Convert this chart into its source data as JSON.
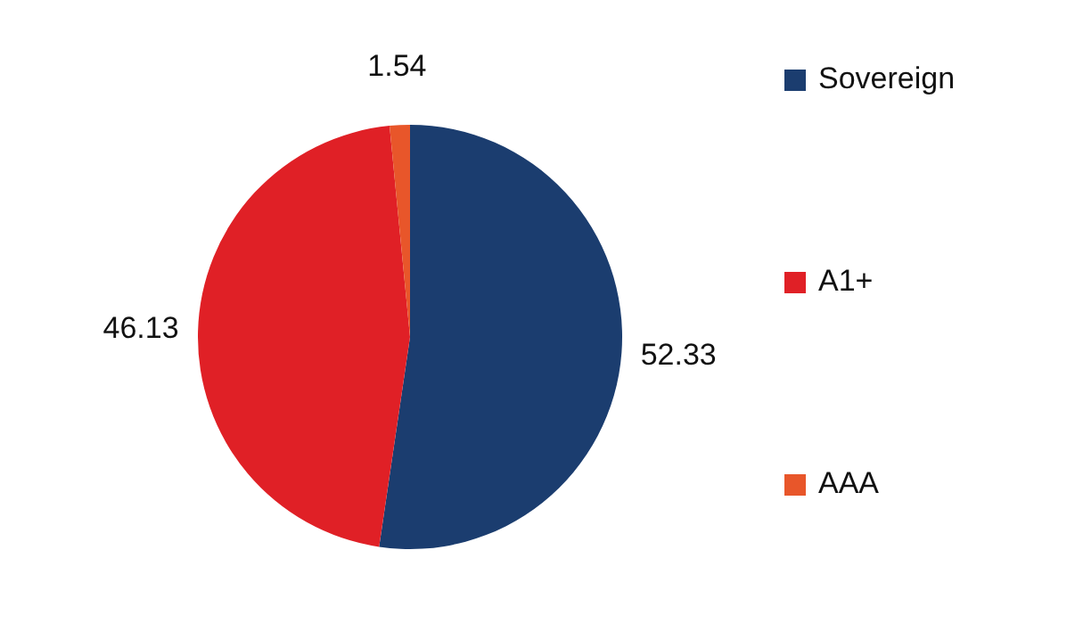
{
  "chart_data": {
    "type": "pie",
    "categories": [
      "Sovereign",
      "A1+",
      "AAA"
    ],
    "values": [
      52.33,
      46.13,
      1.54
    ],
    "colors": [
      "#1b3d6f",
      "#e02026",
      "#e8562a"
    ],
    "data_labels": true,
    "legend": "right"
  }
}
